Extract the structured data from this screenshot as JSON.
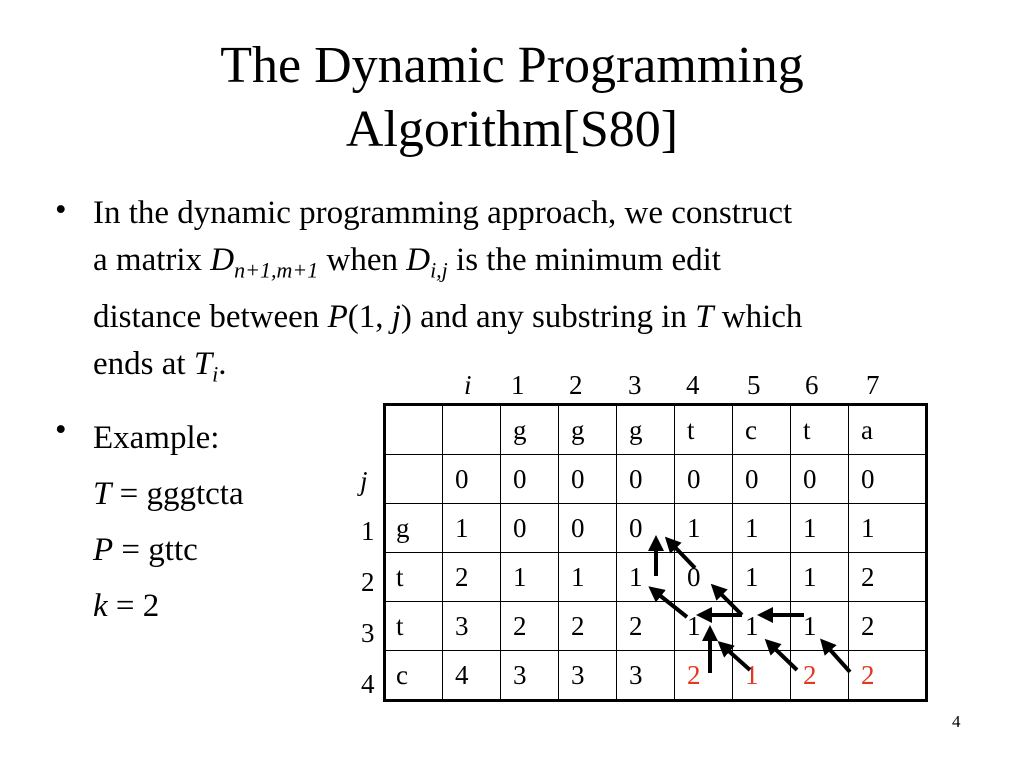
{
  "title": {
    "line1": "The Dynamic Programming",
    "line2": "Algorithm[S80]"
  },
  "bullets": {
    "b1": {
      "l1": "In the dynamic programming approach, we construct",
      "l2a": "a matrix ",
      "l2D": "D",
      "l2sub": "n+1,m+1",
      "l2b": " when ",
      "l2D2": "D",
      "l2sub2": "i,j",
      "l2c": " is the minimum edit",
      "l3a": "distance between ",
      "l3P": "P",
      "l3b": "(1, ",
      "l3j": "j",
      "l3c": ") and any substring in ",
      "l3T": "T",
      "l3d": " which",
      "l4a": "ends at ",
      "l4T": "T",
      "l4sub": "i",
      "l4b": "."
    },
    "b2": {
      "label": "Example:",
      "t_var": "T",
      "t_val": " = gggtcta",
      "p_var": "P",
      "p_val": " = gttc",
      "k_var": "k",
      "k_val": " = 2"
    }
  },
  "matrix": {
    "i_label": "i",
    "j_label": "j",
    "i_indices": [
      "1",
      "2",
      "3",
      "4",
      "5",
      "6",
      "7"
    ],
    "j_indices": [
      "1",
      "2",
      "3",
      "4"
    ],
    "header": [
      "",
      "",
      "g",
      "g",
      "g",
      "t",
      "c",
      "t",
      "a"
    ],
    "rows": [
      [
        "",
        "0",
        "0",
        "0",
        "0",
        "0",
        "0",
        "0",
        "0"
      ],
      [
        "g",
        "1",
        "0",
        "0",
        "0",
        "1",
        "1",
        "1",
        "1"
      ],
      [
        "t",
        "2",
        "1",
        "1",
        "1",
        "0",
        "1",
        "1",
        "2"
      ],
      [
        "t",
        "3",
        "2",
        "2",
        "2",
        "1",
        "1",
        "1",
        "2"
      ],
      [
        "c",
        "4",
        "3",
        "3",
        "3",
        "2",
        "1",
        "2",
        "2"
      ]
    ],
    "highlight_color": "#e8351f",
    "highlighted_last_row_from_col": 5
  },
  "page_number": "4"
}
